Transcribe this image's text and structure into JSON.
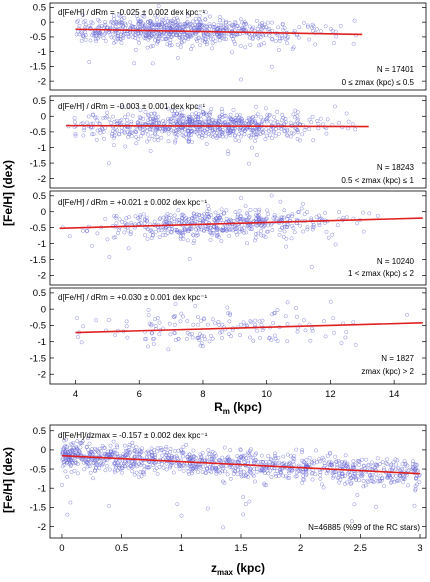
{
  "figure": {
    "ylabel_top": "[Fe/H] (dex)",
    "ylabel_bottom": "[Fe/H] (dex)",
    "xlabel_top": "R",
    "xlabel_top_sub": "m",
    "xlabel_top_unit": " (kpc)",
    "xlabel_bottom": "z",
    "xlabel_bottom_sub": "max",
    "xlabel_bottom_unit": " (kpc)"
  },
  "chart_data": [
    {
      "type": "scatter",
      "panel": 1,
      "gradient_text": "d[Fe/H] / dRm = -0.025 ± 0.002 dex kpc⁻¹",
      "count_text": "N = 17401",
      "range_text": "0 ≤ zmax (kpc) ≤ 0.5",
      "xlim": [
        3.2,
        15.0
      ],
      "ylim": [
        -2.3,
        0.65
      ],
      "yticks": [
        0.5,
        0,
        -0.5,
        -1,
        -1.5,
        -2
      ],
      "points_x_range": [
        4.0,
        13.0
      ],
      "fit": {
        "x": [
          4.0,
          13.0
        ],
        "y": [
          -0.24,
          -0.415
        ]
      },
      "n": 17401
    },
    {
      "type": "scatter",
      "panel": 2,
      "gradient_text": "d[Fe/H] / dRm = -0.003 ± 0.001 dex kpc⁻¹",
      "count_text": "N = 18243",
      "range_text": "0.5 < zmax (kpc) ≤ 1",
      "xlim": [
        3.2,
        15.0
      ],
      "ylim": [
        -2.3,
        0.65
      ],
      "yticks": [
        0.5,
        0,
        -0.5,
        -1,
        -1.5,
        -2
      ],
      "points_x_range": [
        3.7,
        13.2
      ],
      "fit": {
        "x": [
          3.7,
          13.2
        ],
        "y": [
          -0.3,
          -0.33
        ]
      },
      "n": 18243
    },
    {
      "type": "scatter",
      "panel": 3,
      "gradient_text": "d[Fe/H] / dRm = +0.021 ± 0.002 dex kpc⁻¹",
      "count_text": "N = 10240",
      "range_text": "1 < zmax (kpc) ≤ 2",
      "xlim": [
        3.2,
        15.0
      ],
      "ylim": [
        -2.3,
        0.65
      ],
      "yticks": [
        0.5,
        0,
        -0.5,
        -1,
        -1.5,
        -2
      ],
      "points_x_range": [
        3.5,
        14.9
      ],
      "fit": {
        "x": [
          3.5,
          14.9
        ],
        "y": [
          -0.52,
          -0.2
        ]
      },
      "n": 10240
    },
    {
      "type": "scatter",
      "panel": 4,
      "gradient_text": "d[Fe/H] / dRm = +0.030 ± 0.001 dex kpc⁻¹",
      "count_text": "N = 1827",
      "range_text": "zmax (kpc) > 2",
      "xlim": [
        3.2,
        15.0
      ],
      "ylim": [
        -2.3,
        0.65
      ],
      "yticks": [
        0.5,
        0,
        -0.5,
        -1,
        -1.5,
        -2
      ],
      "xticks": [
        4,
        6,
        8,
        10,
        12,
        14
      ],
      "xlabel": "Rm (kpc)",
      "points_x_range": [
        4.0,
        14.9
      ],
      "fit": {
        "x": [
          4.0,
          14.9
        ],
        "y": [
          -0.72,
          -0.42
        ]
      },
      "n": 1827
    },
    {
      "type": "scatter",
      "panel": 5,
      "gradient_text": "d[Fe/H]/dzmax = -0.157 ± 0.002 dex kpc⁻¹",
      "count_text": "N=46885 (%99 of the RC stars)",
      "xlim": [
        -0.1,
        3.05
      ],
      "ylim": [
        -2.3,
        0.65
      ],
      "yticks": [
        0.5,
        0,
        -0.5,
        -1,
        -1.5,
        -2
      ],
      "xticks": [
        0,
        0.5,
        1,
        1.5,
        2,
        2.5,
        3
      ],
      "xlabel": "zmax (kpc)",
      "points_x_range": [
        0.0,
        3.0
      ],
      "fit": {
        "x": [
          0.0,
          3.0
        ],
        "y": [
          -0.15,
          -0.62
        ]
      },
      "n": 46885
    }
  ]
}
